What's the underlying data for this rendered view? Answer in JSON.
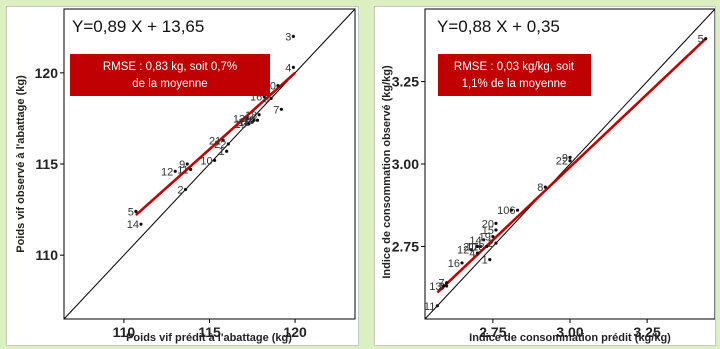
{
  "colors": {
    "background": "#dcefc0",
    "regression_line": "#c00000",
    "rmse_box": "#c00000",
    "identity_line": "#000000"
  },
  "chart_data": [
    {
      "type": "scatter",
      "equation": "Y=0,89 X + 13,65",
      "rmse_line1": "RMSE : 0,83 kg, soit 0,7%",
      "rmse_line2": "de la moyenne",
      "xlabel": "Poids vif prédit à l'abattage (kg)",
      "ylabel": "Poids vif observé à l'abattage (kg)",
      "xlim": [
        106.5,
        123.5
      ],
      "ylim": [
        106.5,
        123.5
      ],
      "xticks": [
        "110",
        "115",
        "120"
      ],
      "yticks": [
        "110",
        "115",
        "120"
      ],
      "regression": {
        "x": [
          110.7,
          120.0
        ],
        "y": [
          112.2,
          120.0
        ]
      },
      "points": [
        {
          "label": "1",
          "x": 116.0,
          "y": 115.7
        },
        {
          "label": "2",
          "x": 113.6,
          "y": 113.6
        },
        {
          "label": "3",
          "x": 119.9,
          "y": 122.0
        },
        {
          "label": "4",
          "x": 119.9,
          "y": 120.3
        },
        {
          "label": "5",
          "x": 110.7,
          "y": 112.4
        },
        {
          "label": "6",
          "x": 118.6,
          "y": 118.6
        },
        {
          "label": "7",
          "x": 119.2,
          "y": 118.0
        },
        {
          "label": "8",
          "x": 117.6,
          "y": 117.4
        },
        {
          "label": "9",
          "x": 113.7,
          "y": 115.0
        },
        {
          "label": "10",
          "x": 115.3,
          "y": 115.2
        },
        {
          "label": "11",
          "x": 113.9,
          "y": 114.7
        },
        {
          "label": "12",
          "x": 113.0,
          "y": 114.6
        },
        {
          "label": "13",
          "x": 117.2,
          "y": 117.5
        },
        {
          "label": "14",
          "x": 111.0,
          "y": 111.7
        },
        {
          "label": "15",
          "x": 117.5,
          "y": 117.3
        },
        {
          "label": "16",
          "x": 118.2,
          "y": 118.7
        },
        {
          "label": "17",
          "x": 117.8,
          "y": 117.4
        },
        {
          "label": "18",
          "x": 117.9,
          "y": 117.7
        },
        {
          "label": "19",
          "x": 117.3,
          "y": 117.2
        },
        {
          "label": "20",
          "x": 119.0,
          "y": 119.3
        },
        {
          "label": "21",
          "x": 115.8,
          "y": 116.3
        },
        {
          "label": "22",
          "x": 116.1,
          "y": 116.1
        }
      ]
    },
    {
      "type": "scatter",
      "equation": "Y=0,88 X + 0,35",
      "rmse_line1": "RMSE : 0,03 kg/kg, soit",
      "rmse_line2": "1,1% de la moyenne",
      "xlabel": "Indice de consommation prédit (kg/kg)",
      "ylabel": "Indice de consommation observé (kg/kg)",
      "xlim": [
        2.53,
        3.47
      ],
      "ylim": [
        2.53,
        3.47
      ],
      "xticks": [
        "2.75",
        "3.00",
        "3.25"
      ],
      "yticks": [
        "2.75",
        "3.00",
        "3.25"
      ],
      "regression": {
        "x": [
          2.57,
          3.44
        ],
        "y": [
          2.61,
          3.38
        ]
      },
      "points": [
        {
          "label": "1",
          "x": 2.74,
          "y": 2.71
        },
        {
          "label": "2",
          "x": 2.76,
          "y": 2.76
        },
        {
          "label": "3",
          "x": 2.6,
          "y": 2.63
        },
        {
          "label": "4",
          "x": 2.7,
          "y": 2.73
        },
        {
          "label": "5",
          "x": 3.44,
          "y": 3.38
        },
        {
          "label": "6",
          "x": 2.83,
          "y": 2.86
        },
        {
          "label": "7",
          "x": 2.6,
          "y": 2.64
        },
        {
          "label": "8",
          "x": 2.92,
          "y": 2.93
        },
        {
          "label": "9",
          "x": 3.0,
          "y": 3.02
        },
        {
          "label": "10",
          "x": 2.81,
          "y": 2.86
        },
        {
          "label": "11",
          "x": 2.57,
          "y": 2.57
        },
        {
          "label": "12",
          "x": 2.68,
          "y": 2.74
        },
        {
          "label": "13",
          "x": 2.59,
          "y": 2.63
        },
        {
          "label": "14",
          "x": 2.72,
          "y": 2.77
        },
        {
          "label": "15",
          "x": 2.76,
          "y": 2.8
        },
        {
          "label": "16",
          "x": 2.65,
          "y": 2.7
        },
        {
          "label": "17",
          "x": 2.71,
          "y": 2.75
        },
        {
          "label": "18",
          "x": 2.73,
          "y": 2.75
        },
        {
          "label": "19",
          "x": 2.75,
          "y": 2.78
        },
        {
          "label": "20",
          "x": 2.76,
          "y": 2.82
        },
        {
          "label": "21",
          "x": 2.7,
          "y": 2.75
        },
        {
          "label": "22",
          "x": 3.0,
          "y": 3.01
        }
      ]
    }
  ]
}
